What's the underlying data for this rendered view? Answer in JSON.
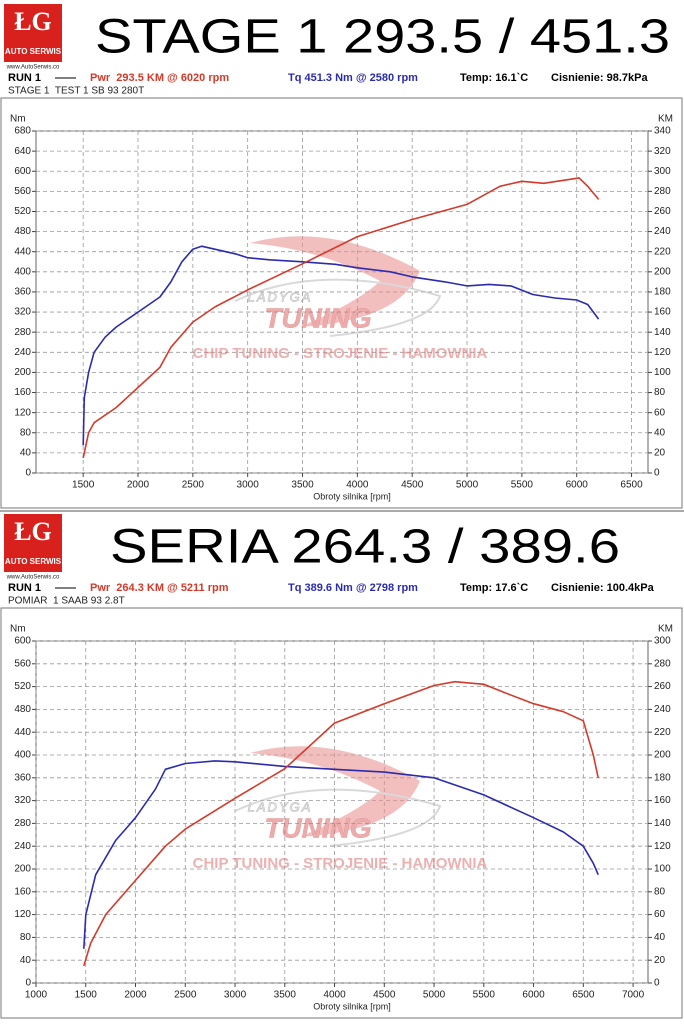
{
  "chart_data": [
    {
      "type": "line",
      "logo": {
        "mark": "ŁG",
        "name": "AUTO SERWIS",
        "url": "www.AutoSerwis.co"
      },
      "title": "STAGE 1 293.5 / 451.3",
      "run_label": "RUN 1",
      "power_label": "Pwr  293.5 KM @ 6020 rpm",
      "torque_label": "Tq 451.3 Nm @ 2580 rpm",
      "temp_label": "Temp: 16.1`C",
      "pressure_label": "Cisnienie: 98.7kPa",
      "subtitle": "STAGE 1  TEST 1 SB 93 280T",
      "y_label": "Nm",
      "y2_label": "KM",
      "x_label": "Obroty silnika [rpm]",
      "watermark": [
        "LADYGA",
        "TUNING",
        "CHIP TUNING - STROJENIE - HAMOWNIA"
      ],
      "xlim": [
        1070,
        6650
      ],
      "xticks": [
        1500,
        2000,
        2500,
        3000,
        3500,
        4000,
        4500,
        5000,
        5500,
        6000,
        6500
      ],
      "ylim": [
        0,
        680
      ],
      "yticks": [
        0,
        40,
        80,
        120,
        160,
        200,
        240,
        280,
        320,
        360,
        400,
        440,
        480,
        520,
        560,
        600,
        640,
        680
      ],
      "y2lim": [
        0,
        340
      ],
      "y2ticks": [
        0,
        20,
        40,
        60,
        80,
        100,
        120,
        140,
        160,
        180,
        200,
        220,
        240,
        260,
        280,
        300,
        320,
        340
      ],
      "grid": true,
      "series": [
        {
          "color": "#2b2bb0",
          "axis": "y",
          "x": [
            1500,
            1510,
            1550,
            1600,
            1700,
            1800,
            2000,
            2200,
            2300,
            2400,
            2500,
            2580,
            2700,
            2900,
            3000,
            3200,
            3500,
            3800,
            4000,
            4300,
            4500,
            4800,
            5000,
            5200,
            5400,
            5600,
            5800,
            6000,
            6100,
            6200
          ],
          "values": [
            55,
            150,
            200,
            240,
            270,
            290,
            320,
            350,
            380,
            420,
            445,
            451,
            445,
            435,
            428,
            424,
            420,
            415,
            408,
            400,
            390,
            380,
            372,
            375,
            372,
            355,
            348,
            344,
            335,
            306
          ]
        },
        {
          "color": "#d43a2a",
          "axis": "y2",
          "x": [
            1500,
            1550,
            1600,
            1800,
            2000,
            2200,
            2300,
            2500,
            2700,
            3000,
            3500,
            4000,
            4500,
            5000,
            5300,
            5500,
            5700,
            6000,
            6020,
            6100,
            6200
          ],
          "values": [
            15,
            40,
            50,
            65,
            85,
            105,
            125,
            150,
            165,
            182,
            208,
            235,
            252,
            267,
            285,
            290,
            288,
            293,
            293.5,
            285,
            272
          ]
        }
      ]
    },
    {
      "type": "line",
      "logo": {
        "mark": "ŁG",
        "name": "AUTO SERWIS",
        "url": "www.AutoSerwis.co"
      },
      "title": "SERIA 264.3 / 389.6",
      "run_label": "RUN 1",
      "power_label": "Pwr  264.3 KM @ 5211 rpm",
      "torque_label": "Tq 389.6 Nm @ 2798 rpm",
      "temp_label": "Temp: 17.6`C",
      "pressure_label": "Cisnienie: 100.4kPa",
      "subtitle": "POMIAR  1 SAAB 93 2.8T",
      "y_label": "Nm",
      "y2_label": "KM",
      "x_label": "Obroty silnika [rpm]",
      "watermark": [
        "LADYGA",
        "TUNING",
        "CHIP TUNING - STROJENIE - HAMOWNIA"
      ],
      "xlim": [
        1000,
        7150
      ],
      "xticks": [
        1000,
        1500,
        2000,
        2500,
        3000,
        3500,
        4000,
        4500,
        5000,
        5500,
        6000,
        6500,
        7000
      ],
      "ylim": [
        0,
        600
      ],
      "yticks": [
        0,
        40,
        80,
        120,
        160,
        200,
        240,
        280,
        320,
        360,
        400,
        440,
        480,
        520,
        560,
        600
      ],
      "y2lim": [
        0,
        300
      ],
      "y2ticks": [
        0,
        20,
        40,
        60,
        80,
        100,
        120,
        140,
        160,
        180,
        200,
        220,
        240,
        260,
        280,
        300
      ],
      "grid": true,
      "series": [
        {
          "color": "#2b2bb0",
          "axis": "y",
          "x": [
            1480,
            1500,
            1600,
            1800,
            2000,
            2200,
            2300,
            2500,
            2798,
            3000,
            3500,
            4000,
            4500,
            5000,
            5500,
            6000,
            6300,
            6500,
            6600,
            6650
          ],
          "values": [
            60,
            120,
            190,
            250,
            290,
            340,
            375,
            385,
            389.6,
            388,
            380,
            375,
            370,
            360,
            330,
            290,
            265,
            240,
            210,
            190
          ]
        },
        {
          "color": "#d43a2a",
          "axis": "y2",
          "x": [
            1480,
            1550,
            1700,
            2000,
            2300,
            2500,
            3000,
            3500,
            4000,
            4500,
            5000,
            5211,
            5500,
            5700,
            6000,
            6300,
            6500,
            6600,
            6650
          ],
          "values": [
            15,
            35,
            60,
            90,
            120,
            135,
            162,
            188,
            228,
            245,
            261,
            264.3,
            262,
            255,
            245,
            238,
            230,
            200,
            180
          ]
        }
      ]
    }
  ]
}
